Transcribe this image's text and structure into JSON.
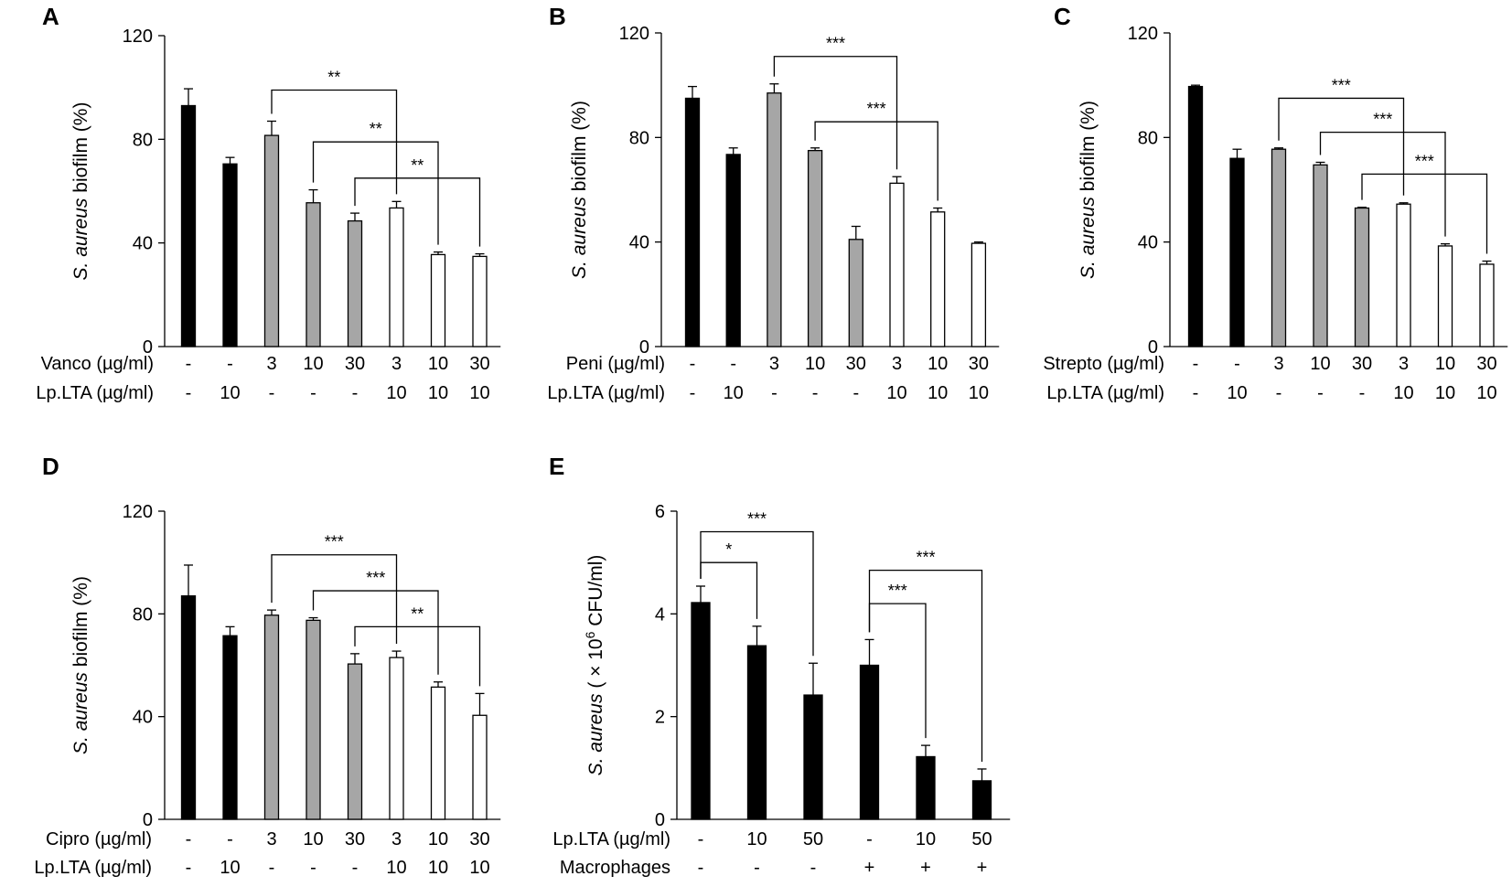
{
  "figure": {
    "colors": {
      "black": "#000000",
      "gray": "#a6a6a6",
      "white": "#ffffff",
      "axis": "#000000"
    },
    "icons": {
      "plus": "+"
    }
  },
  "chart_data": [
    {
      "panel": "A",
      "type": "bar",
      "ylabel_italic": "S. aureus",
      "ylabel_rest": " biofilm (%)",
      "ylim": [
        0,
        120
      ],
      "yticks": [
        "0",
        "40",
        "80",
        "120"
      ],
      "xlabel": "",
      "values": [
        93,
        70.5,
        81.5,
        55.5,
        48.5,
        53.5,
        35.5,
        34.8
      ],
      "errors": [
        6.5,
        2.5,
        5.5,
        5.0,
        3.0,
        2.5,
        1.0,
        1.0
      ],
      "fills": [
        "black",
        "black",
        "gray",
        "gray",
        "gray",
        "white",
        "white",
        "white"
      ],
      "condition_rows": [
        {
          "label": "Vanco (µg/ml)",
          "cells": [
            "-",
            "-",
            "3",
            "10",
            "30",
            "3",
            "10",
            "30"
          ]
        },
        {
          "label": "Lp.LTA (µg/ml)",
          "cells": [
            "-",
            "10",
            "-",
            "-",
            "-",
            "10",
            "10",
            "10"
          ]
        }
      ],
      "significance": [
        {
          "from": 2,
          "to": 5,
          "y": 99,
          "label": "**"
        },
        {
          "from": 3,
          "to": 6,
          "y": 79,
          "label": "**"
        },
        {
          "from": 4,
          "to": 7,
          "y": 65,
          "label": "**"
        }
      ]
    },
    {
      "panel": "B",
      "type": "bar",
      "ylabel_italic": "S. aureus",
      "ylabel_rest": " biofilm (%)",
      "ylim": [
        0,
        120
      ],
      "yticks": [
        "0",
        "40",
        "80",
        "120"
      ],
      "xlabel": "",
      "values": [
        95,
        73.5,
        97,
        75,
        41,
        62.5,
        51.5,
        39.5
      ],
      "errors": [
        4.5,
        2.5,
        3.5,
        1.0,
        5.0,
        2.5,
        1.5,
        0.5
      ],
      "fills": [
        "black",
        "black",
        "gray",
        "gray",
        "gray",
        "white",
        "white",
        "white"
      ],
      "condition_rows": [
        {
          "label": "Peni (µg/ml)",
          "cells": [
            "-",
            "-",
            "3",
            "10",
            "30",
            "3",
            "10",
            "30"
          ]
        },
        {
          "label": "Lp.LTA (µg/ml)",
          "cells": [
            "-",
            "10",
            "-",
            "-",
            "-",
            "10",
            "10",
            "10"
          ]
        }
      ],
      "significance": [
        {
          "from": 2,
          "to": 5,
          "y": 111,
          "label": "***"
        },
        {
          "from": 3,
          "to": 6,
          "y": 86,
          "label": "***"
        }
      ]
    },
    {
      "panel": "C",
      "type": "bar",
      "ylabel_italic": "S. aureus",
      "ylabel_rest": " biofilm (%)",
      "ylim": [
        0,
        120
      ],
      "yticks": [
        "0",
        "40",
        "80",
        "120"
      ],
      "xlabel": "",
      "values": [
        99.5,
        72,
        75.5,
        69.5,
        53,
        54.5,
        38.5,
        31.5
      ],
      "errors": [
        0.5,
        3.5,
        0.5,
        1.0,
        0.3,
        0.5,
        0.8,
        1.2
      ],
      "fills": [
        "black",
        "black",
        "gray",
        "gray",
        "gray",
        "white",
        "white",
        "white"
      ],
      "condition_rows": [
        {
          "label": "Strepto (µg/ml)",
          "cells": [
            "-",
            "-",
            "3",
            "10",
            "30",
            "3",
            "10",
            "30"
          ]
        },
        {
          "label": "Lp.LTA (µg/ml)",
          "cells": [
            "-",
            "10",
            "-",
            "-",
            "-",
            "10",
            "10",
            "10"
          ]
        }
      ],
      "significance": [
        {
          "from": 2,
          "to": 5,
          "y": 95,
          "label": "***"
        },
        {
          "from": 3,
          "to": 6,
          "y": 82,
          "label": "***"
        },
        {
          "from": 4,
          "to": 7,
          "y": 66,
          "label": "***"
        }
      ]
    },
    {
      "panel": "D",
      "type": "bar",
      "ylabel_italic": "S. aureus",
      "ylabel_rest": " biofilm (%)",
      "ylim": [
        0,
        120
      ],
      "yticks": [
        "0",
        "40",
        "80",
        "120"
      ],
      "xlabel": "",
      "values": [
        87,
        71.5,
        79.5,
        77.5,
        60.5,
        63,
        51.5,
        40.5
      ],
      "errors": [
        12,
        3.5,
        2.0,
        1.0,
        4.0,
        2.5,
        2.0,
        8.5
      ],
      "fills": [
        "black",
        "black",
        "gray",
        "gray",
        "gray",
        "white",
        "white",
        "white"
      ],
      "condition_rows": [
        {
          "label": "Cipro (µg/ml)",
          "cells": [
            "-",
            "-",
            "3",
            "10",
            "30",
            "3",
            "10",
            "30"
          ]
        },
        {
          "label": "Lp.LTA (µg/ml)",
          "cells": [
            "-",
            "10",
            "-",
            "-",
            "-",
            "10",
            "10",
            "10"
          ]
        }
      ],
      "significance": [
        {
          "from": 2,
          "to": 5,
          "y": 103,
          "label": "***"
        },
        {
          "from": 3,
          "to": 6,
          "y": 89,
          "label": "***"
        },
        {
          "from": 4,
          "to": 7,
          "y": 75,
          "label": "**"
        }
      ]
    },
    {
      "panel": "E",
      "type": "bar",
      "ylabel_italic": "S. aureus",
      "ylabel_rest": " ( × 10",
      "ylabel_sup": "6",
      "ylabel_end": " CFU/ml)",
      "ylim": [
        0,
        6
      ],
      "yticks": [
        "0",
        "2",
        "4",
        "6"
      ],
      "xlabel": "",
      "values": [
        4.22,
        3.38,
        2.42,
        3.0,
        1.22,
        0.75
      ],
      "errors": [
        0.32,
        0.38,
        0.62,
        0.5,
        0.22,
        0.23
      ],
      "fills": [
        "black",
        "black",
        "black",
        "black",
        "black",
        "black"
      ],
      "condition_rows": [
        {
          "label": "Lp.LTA (µg/ml)",
          "cells": [
            "-",
            "10",
            "50",
            "-",
            "10",
            "50"
          ]
        },
        {
          "label": "Macrophages",
          "cells": [
            "-",
            "-",
            "-",
            "+",
            "+",
            "+"
          ]
        }
      ],
      "significance": [
        {
          "from": 0,
          "to": 1,
          "y": 5.0,
          "label": "*"
        },
        {
          "from": 0,
          "to": 2,
          "y": 5.6,
          "label": "***"
        },
        {
          "from": 3,
          "to": 4,
          "y": 4.2,
          "label": "***"
        },
        {
          "from": 3,
          "to": 5,
          "y": 4.85,
          "label": "***"
        }
      ]
    }
  ]
}
